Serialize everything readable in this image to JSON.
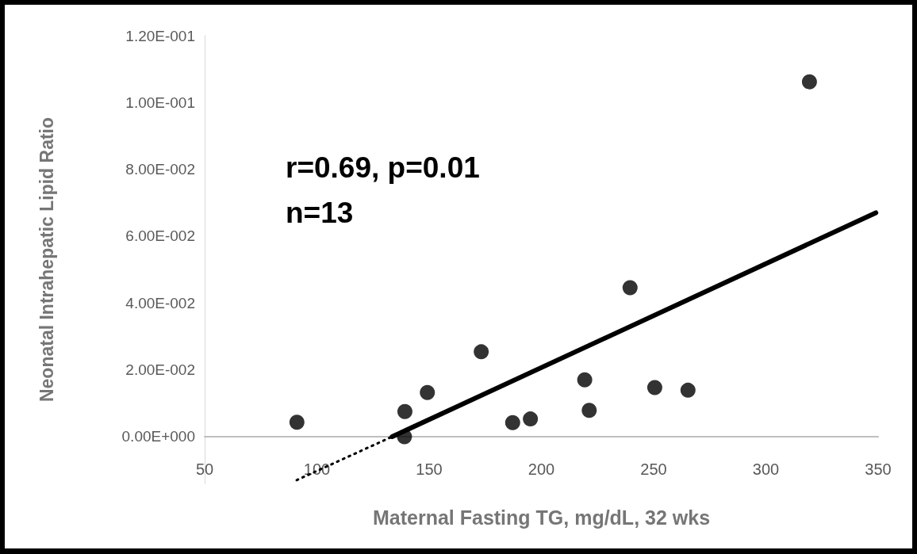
{
  "chart_data": {
    "type": "scatter",
    "xlabel": "Maternal Fasting TG, mg/dL, 32 wks",
    "ylabel": "Neonatal Intrahepatic Lipid Ratio",
    "annotations": [
      "r=0.69, p=0.01",
      "n=13"
    ],
    "xlim": [
      50,
      350
    ],
    "xticks": [
      50,
      100,
      150,
      200,
      250,
      300,
      350
    ],
    "ylim": [
      -0.014,
      0.12
    ],
    "yticks": [
      {
        "value": 0,
        "label": "0.00E+000"
      },
      {
        "value": 0.02,
        "label": "2.00E-002"
      },
      {
        "value": 0.04,
        "label": "4.00E-002"
      },
      {
        "value": 0.06,
        "label": "6.00E-002"
      },
      {
        "value": 0.08,
        "label": "8.00E-002"
      },
      {
        "value": 0.1,
        "label": "1.00E-001"
      },
      {
        "value": 0.12,
        "label": "1.20E-001"
      }
    ],
    "grid": false,
    "marker": "circle",
    "series": [
      {
        "color": "#000000",
        "x": [
          91.1,
          139.2,
          139,
          149.2,
          173.2,
          187.2,
          195.1,
          239.5,
          219.3,
          221.3,
          250.5,
          265.3,
          319.4
        ],
        "values": [
          0.0043,
          0.0075,
          0,
          0.0132,
          0.0254,
          0.0042,
          0.0053,
          0.0446,
          0.017,
          0.0079,
          0.0147,
          0.0139,
          0.1062
        ]
      },
      {
        "type": "line",
        "color": "#000000",
        "line_style": "dotted",
        "marker": "none",
        "x": [
          91,
          133.5
        ],
        "values": [
          -0.013,
          0
        ]
      },
      {
        "type": "line",
        "color": "#000000",
        "line_style": "solid",
        "marker": "none",
        "x": [
          133.5,
          349
        ],
        "values": [
          0,
          0.067
        ]
      }
    ]
  }
}
